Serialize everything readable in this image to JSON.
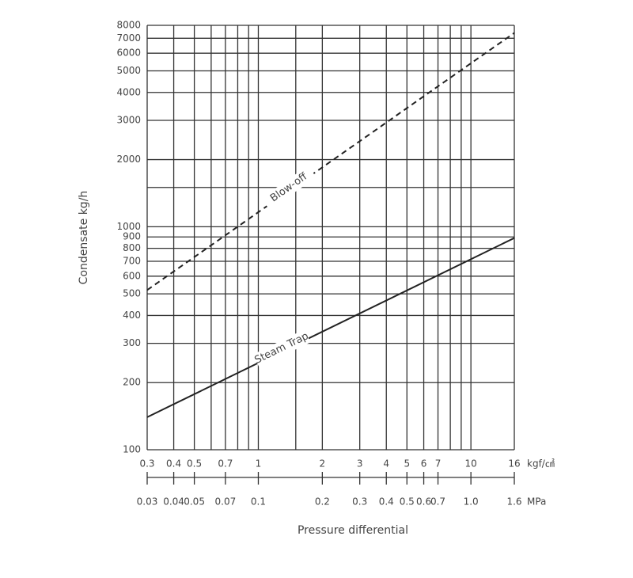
{
  "chart_data": {
    "type": "line",
    "xlabel": "Pressure differential",
    "ylabel": "Condensate kg/h",
    "xunit": "kgf/㎠",
    "x2unit": "MPa",
    "xscale": "log",
    "yscale": "log",
    "grid": true,
    "xlim": [
      0.3,
      16
    ],
    "ylim": [
      100,
      8000
    ],
    "xticks": [
      0.3,
      0.4,
      0.5,
      0.7,
      1,
      2,
      3,
      4,
      5,
      6,
      7,
      10,
      16
    ],
    "xminor": [
      0.6,
      0.8,
      0.9,
      1.5,
      8,
      9
    ],
    "yticks": [
      100,
      200,
      300,
      400,
      500,
      600,
      700,
      800,
      900,
      1000,
      2000,
      3000,
      4000,
      5000,
      6000,
      7000,
      8000
    ],
    "yminor": [
      1500
    ],
    "x2lim": [
      0.03,
      1.6
    ],
    "x2ticks": [
      0.03,
      0.04,
      0.05,
      0.07,
      0.1,
      0.2,
      0.3,
      0.4,
      0.5,
      0.6,
      0.7,
      {
        "value": 1,
        "label": "1.0"
      },
      1.6
    ],
    "x": [
      0.3,
      16
    ],
    "series": [
      {
        "name": "Blow-off",
        "color": "#222",
        "style": "dashed",
        "values": [
          520,
          7400
        ]
      },
      {
        "name": "Steam Trap",
        "color": "#222",
        "style": "solid",
        "values": [
          140,
          890
        ]
      }
    ]
  }
}
